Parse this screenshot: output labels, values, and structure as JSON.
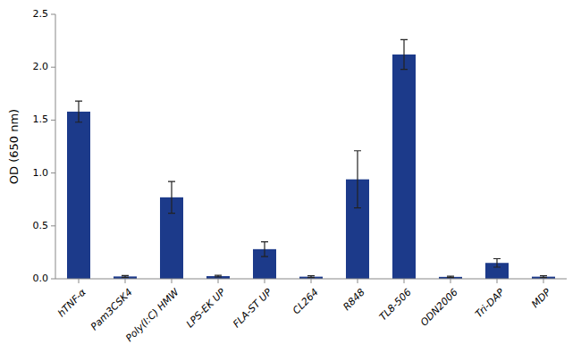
{
  "chart_data": {
    "type": "bar",
    "categories": [
      "hTNF-α",
      "Pam3CSK4",
      "Poly(I:C) HMW",
      "LPS-EK UP",
      "FLA-ST UP",
      "CL264",
      "R848",
      "TL8-506",
      "ODN2006",
      "Tri-DAP",
      "MDP"
    ],
    "values": [
      1.58,
      0.022,
      0.77,
      0.025,
      0.28,
      0.02,
      0.94,
      2.12,
      0.018,
      0.15,
      0.02
    ],
    "errors": [
      0.1,
      0.008,
      0.15,
      0.008,
      0.07,
      0.008,
      0.27,
      0.14,
      0.006,
      0.04,
      0.008
    ],
    "color": "#1c3a8a",
    "ylabel": "OD (650 nm)",
    "ylim": [
      0,
      2.5
    ],
    "yticks": [
      {
        "value": 0,
        "label": "0.0"
      },
      0.5,
      {
        "value": 1,
        "label": "1.0"
      },
      1.5,
      {
        "value": 2,
        "label": "2.0"
      },
      2.5
    ],
    "grid": false
  }
}
